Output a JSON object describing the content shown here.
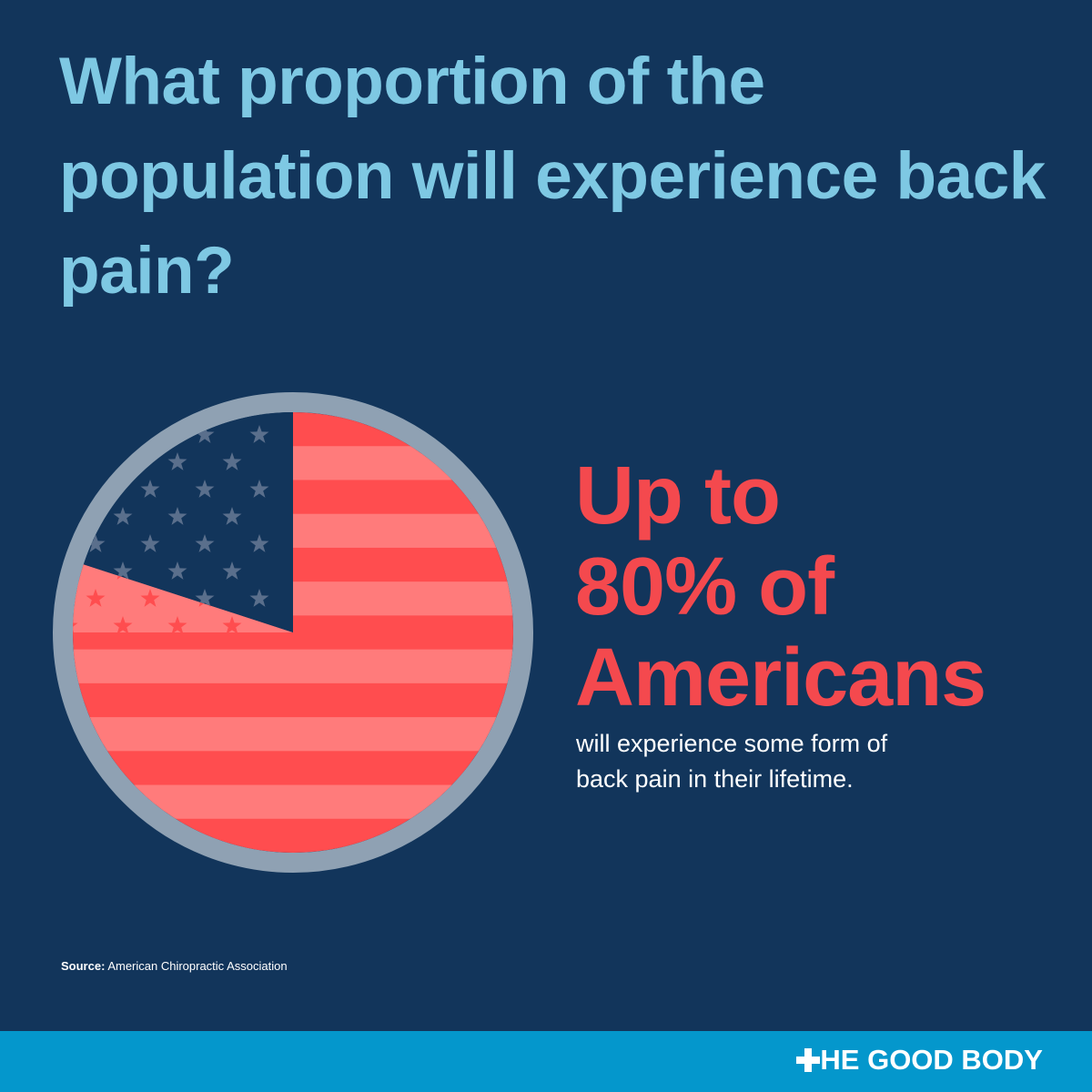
{
  "chart_data": {
    "type": "pie",
    "title": "What proportion of the population will experience back pain?",
    "values": [
      80,
      20
    ],
    "colors": [
      "#ff4d4f",
      "#12355b"
    ],
    "headline": [
      "Up to",
      "80% of",
      "Americans"
    ],
    "subtitle": [
      "will experience some form of",
      "back pain in their lifetime."
    ],
    "source_label": "Source:",
    "source": "American Chiropractic Association",
    "brand": "HE GOOD BODY"
  }
}
